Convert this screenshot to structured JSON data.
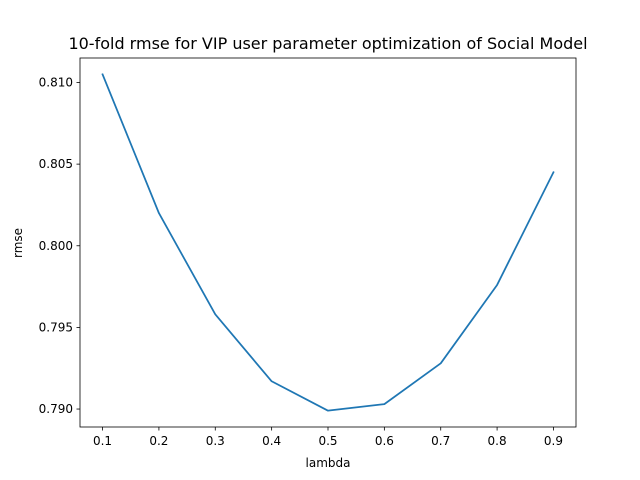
{
  "chart_data": {
    "type": "line",
    "title": "10-fold rmse for VIP user parameter optimization of Social Model",
    "xlabel": "lambda",
    "ylabel": "rmse",
    "xlim": [
      0.06,
      0.94
    ],
    "ylim": [
      0.7889,
      0.8115
    ],
    "x_ticks": [
      0.1,
      0.2,
      0.3,
      0.4,
      0.5,
      0.6,
      0.7,
      0.8,
      0.9
    ],
    "x_tick_labels": [
      "0.1",
      "0.2",
      "0.3",
      "0.4",
      "0.5",
      "0.6",
      "0.7",
      "0.8",
      "0.9"
    ],
    "y_ticks": [
      0.79,
      0.795,
      0.8,
      0.805,
      0.81
    ],
    "y_tick_labels": [
      "0.790",
      "0.795",
      "0.800",
      "0.805",
      "0.810"
    ],
    "grid": false,
    "series": [
      {
        "x": [
          0.1,
          0.2,
          0.3,
          0.4,
          0.5,
          0.6,
          0.7,
          0.8,
          0.9
        ],
        "values": [
          0.8105,
          0.802,
          0.7958,
          0.7917,
          0.7899,
          0.7903,
          0.7928,
          0.7976,
          0.8045
        ],
        "color": "#1f77b4"
      }
    ]
  }
}
